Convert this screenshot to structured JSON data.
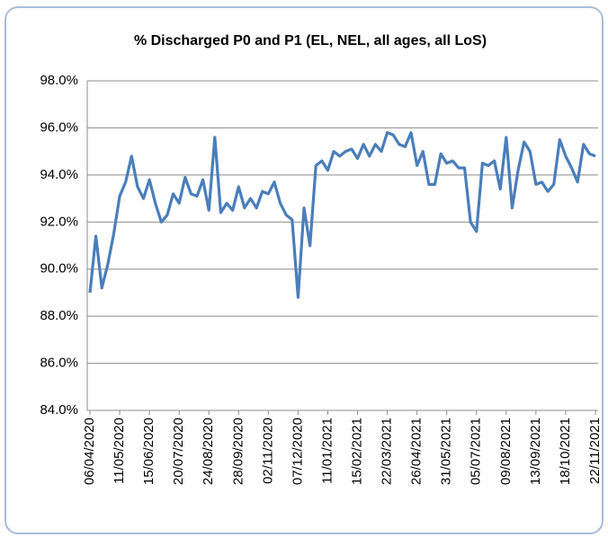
{
  "chart_data": {
    "type": "line",
    "title": "% Discharged P0 and P1 (EL, NEL, all ages, all LoS)",
    "categories": [
      "06/04/2020",
      null,
      null,
      null,
      null,
      "11/05/2020",
      null,
      null,
      null,
      null,
      "15/06/2020",
      null,
      null,
      null,
      null,
      "20/07/2020",
      null,
      null,
      null,
      null,
      "24/08/2020",
      null,
      null,
      null,
      null,
      "28/09/2020",
      null,
      null,
      null,
      null,
      "02/11/2020",
      null,
      null,
      null,
      null,
      "07/12/2020",
      null,
      null,
      null,
      null,
      "11/01/2021",
      null,
      null,
      null,
      null,
      "15/02/2021",
      null,
      null,
      null,
      null,
      "22/03/2021",
      null,
      null,
      null,
      null,
      "26/04/2021",
      null,
      null,
      null,
      null,
      "31/05/2021",
      null,
      null,
      null,
      null,
      "05/07/2021",
      null,
      null,
      null,
      null,
      "09/08/2021",
      null,
      null,
      null,
      null,
      "13/09/2021",
      null,
      null,
      null,
      null,
      "18/10/2021",
      null,
      null,
      null,
      null,
      "22/11/2021"
    ],
    "series": [
      {
        "color": "#4a7ebb",
        "values": [
          89.0,
          91.4,
          89.2,
          90.2,
          91.5,
          93.1,
          93.7,
          94.8,
          93.5,
          93.0,
          93.8,
          92.8,
          92.0,
          92.3,
          93.2,
          92.8,
          93.9,
          93.2,
          93.1,
          93.8,
          92.5,
          95.6,
          92.4,
          92.8,
          92.5,
          93.5,
          92.6,
          93.0,
          92.6,
          93.3,
          93.2,
          93.7,
          92.8,
          92.3,
          92.1,
          88.8,
          92.6,
          91.0,
          94.4,
          94.6,
          94.2,
          95.0,
          94.8,
          95.0,
          95.1,
          94.7,
          95.3,
          94.8,
          95.3,
          95.0,
          95.8,
          95.7,
          95.3,
          95.2,
          95.8,
          94.4,
          95.0,
          93.6,
          93.6,
          94.9,
          94.5,
          94.6,
          94.3,
          94.3,
          92.0,
          91.6,
          94.5,
          94.4,
          94.6,
          93.4,
          95.6,
          92.6,
          94.2,
          95.4,
          95.0,
          93.6,
          93.7,
          93.3,
          93.6,
          95.5,
          94.8,
          94.3,
          93.7,
          95.3,
          94.9,
          94.8
        ]
      }
    ],
    "ylim": [
      84,
      98
    ],
    "yticks": [
      {
        "value": 84,
        "label": "84.0%"
      },
      {
        "value": 86,
        "label": "86.0%"
      },
      {
        "value": 88,
        "label": "88.0%"
      },
      {
        "value": 90,
        "label": "90.0%"
      },
      {
        "value": 92,
        "label": "92.0%"
      },
      {
        "value": 94,
        "label": "94.0%"
      },
      {
        "value": 96,
        "label": "96.0%"
      },
      {
        "value": 98,
        "label": "98.0%"
      }
    ],
    "grid": true
  }
}
